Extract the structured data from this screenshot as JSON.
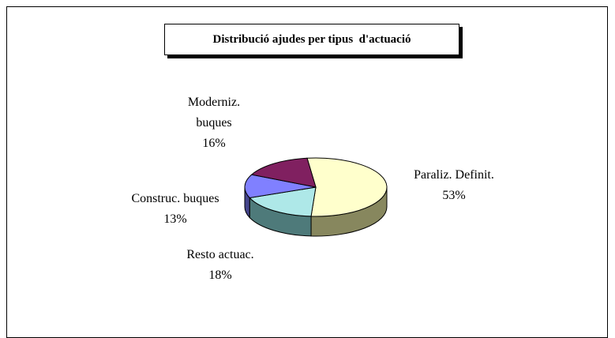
{
  "chart_data": {
    "type": "pie3d",
    "title": "Distribució ajudes per tipus  d'actuació",
    "categories": [
      "Paraliz. Definit.",
      "Resto actuac.",
      "Construc. buques",
      "Moderniz. buques"
    ],
    "values": [
      53,
      18,
      13,
      16
    ],
    "value_labels": [
      "53%",
      "18%",
      "13%",
      "16%"
    ],
    "colors": [
      "#ffffcc",
      "#aee8e8",
      "#8080ff",
      "#802060"
    ],
    "side_colors": [
      "#87875e",
      "#4e7a7a",
      "#45458c",
      "#4a1538"
    ]
  }
}
